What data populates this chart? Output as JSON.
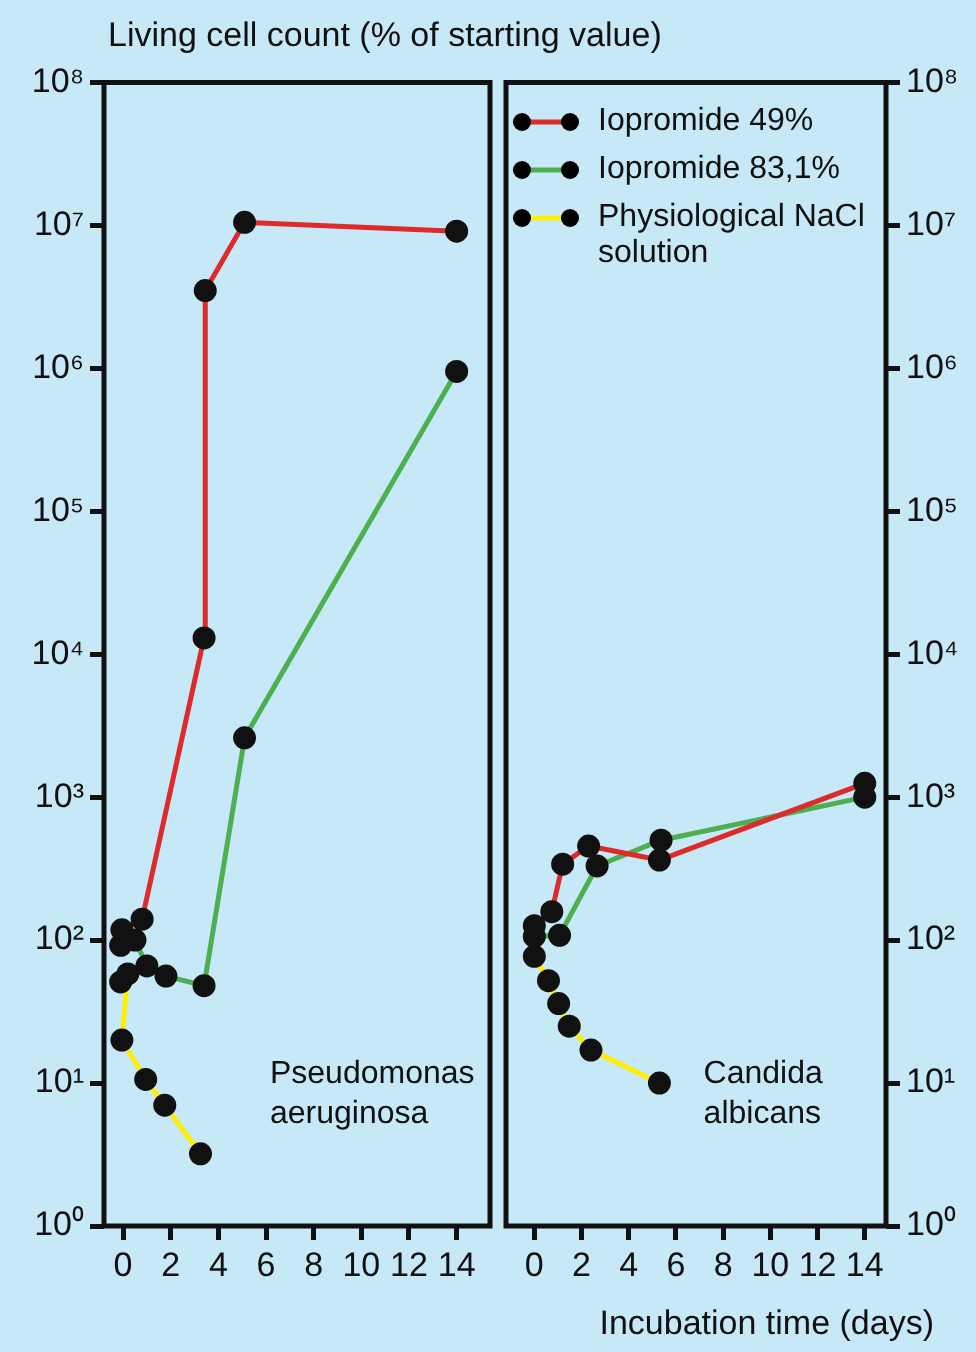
{
  "chart_data": [
    {
      "type": "line",
      "ylabel": "Living cell count (% of starting value)",
      "annotations": [
        "Pseudomonas aeruginosa"
      ],
      "log": "y",
      "grid": false,
      "marker": "circle",
      "line_style": "solid",
      "xlim": [
        -0.8,
        15.4
      ],
      "xticks": [
        0,
        2,
        4,
        6,
        8,
        10,
        12,
        14
      ],
      "ylim": [
        1,
        100000000
      ],
      "yticks": [
        {
          "value": 1,
          "label": "10⁰"
        },
        {
          "value": 10,
          "label": "10¹"
        },
        {
          "value": 100,
          "label": "10²"
        },
        {
          "value": 1000,
          "label": "10³"
        },
        {
          "value": 10000,
          "label": "10⁴"
        },
        {
          "value": 100000,
          "label": "10⁵"
        },
        {
          "value": 1000000,
          "label": "10⁶"
        },
        {
          "value": 10000000,
          "label": "10⁷"
        },
        {
          "value": 100000000,
          "label": "10⁸"
        }
      ],
      "series": [
        {
          "color": "#4caf50",
          "x": [
            -0.1,
            0.5,
            1.0,
            1.8,
            3.4,
            5.1,
            14
          ],
          "values": [
            92,
            100,
            66,
            56,
            48,
            2600,
            950000
          ]
        },
        {
          "color": "#ffee00",
          "x": [
            -0.1,
            0.2,
            -0.05,
            0.95,
            1.75,
            3.25
          ],
          "values": [
            51,
            58,
            20,
            10.6,
            7,
            3.2
          ]
        },
        {
          "color": "#dd2a2a",
          "x": [
            -0.05,
            0.8,
            3.4,
            3.45,
            5.1,
            14
          ],
          "values": [
            118,
            140,
            13000,
            3500000,
            10500000,
            9100000
          ]
        }
      ]
    },
    {
      "type": "line",
      "xlabel": "Incubation time (days)",
      "annotations": [
        "Candida albicans"
      ],
      "log": "y",
      "grid": false,
      "marker": "circle",
      "line_style": "solid",
      "legend": "top right",
      "xlim": [
        -1.2,
        14.9
      ],
      "xticks": [
        0,
        2,
        4,
        6,
        8,
        10,
        12,
        14
      ],
      "ylim": [
        1,
        100000000
      ],
      "yticks": [
        {
          "value": 1,
          "label": "10⁰"
        },
        {
          "value": 10,
          "label": "10¹"
        },
        {
          "value": 100,
          "label": "10²"
        },
        {
          "value": 1000,
          "label": "10³"
        },
        {
          "value": 10000,
          "label": "10⁴"
        },
        {
          "value": 100000,
          "label": "10⁵"
        },
        {
          "value": 1000000,
          "label": "10⁶"
        },
        {
          "value": 10000000,
          "label": "10⁷"
        },
        {
          "value": 100000000,
          "label": "10⁸"
        }
      ],
      "series": [
        {
          "name": "Iopromide 49%",
          "color": "#dd2a2a",
          "x": [
            0,
            0.74,
            1.2,
            2.3,
            5.3,
            14
          ],
          "values": [
            126,
            158,
            340,
            455,
            363,
            1250
          ]
        },
        {
          "name": "Iopromide 83,1%",
          "color": "#4caf50",
          "x": [
            0,
            1.07,
            2.66,
            5.37,
            14
          ],
          "values": [
            106,
            108,
            330,
            500,
            1000
          ]
        },
        {
          "name": "Physiological NaCl solution",
          "color": "#ffee00",
          "x": [
            0,
            0.6,
            1.03,
            1.48,
            2.4,
            5.3
          ],
          "values": [
            77,
            52,
            36,
            25,
            17,
            10
          ]
        }
      ]
    }
  ]
}
